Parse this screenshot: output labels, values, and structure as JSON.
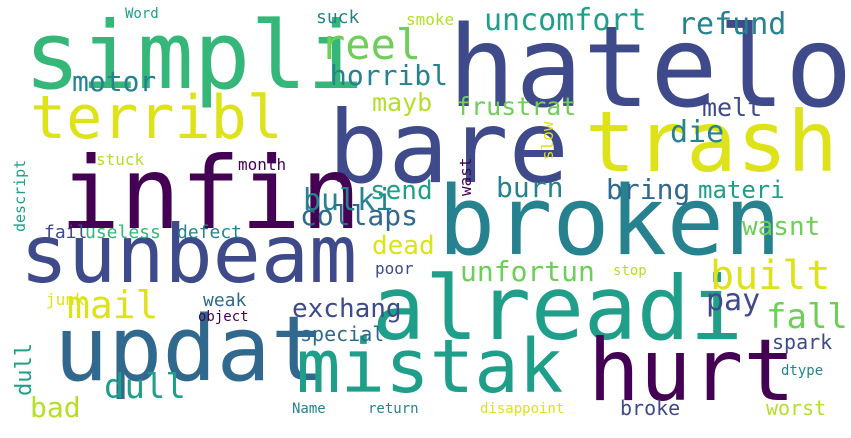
{
  "palette": {
    "dark_purple": "#440154",
    "indigo": "#3e4a89",
    "blue": "#31688e",
    "teal": "#26828e",
    "green_teal": "#1f9e89",
    "green": "#35b779",
    "light_green": "#6ece58",
    "yellow_green": "#b5de2b",
    "yellow": "#dde318"
  },
  "words": [
    "simpli",
    "hateloud",
    "trash",
    "bare",
    "infin",
    "terribl",
    "broken",
    "sunbeam",
    "alreadi",
    "updat",
    "mistak",
    "hurt",
    "reel",
    "uncomfort",
    "refund",
    "motor",
    "horribl",
    "mayb",
    "frustrat",
    "die",
    "melt",
    "bulki",
    "send",
    "burn",
    "bring",
    "materi",
    "collaps",
    "wasnt",
    "dead",
    "built",
    "unfortun",
    "mail",
    "pay",
    "fall",
    "dull",
    "exchang",
    "bad",
    "weak",
    "special",
    "spark",
    "broke",
    "junk",
    "object",
    "poor",
    "stop",
    "fail",
    "useless",
    "defect",
    "stuck",
    "month",
    "wast",
    "slow",
    "descript",
    "suck",
    "smoke",
    "Word",
    "dtype",
    "worst",
    "arthriti",
    "disappoint",
    "return",
    "Name"
  ]
}
